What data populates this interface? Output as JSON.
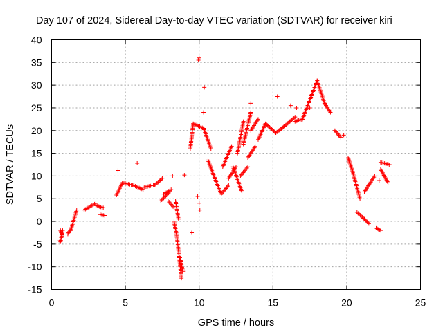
{
  "chart_data": {
    "type": "scatter",
    "title": "Day 107 of 2024, Sidereal Day-to-day VTEC variation (SDTVAR) for receiver kiri",
    "xlabel": "GPS time / hours",
    "ylabel": "SDTVAR / TECUs",
    "xlim": [
      0,
      25
    ],
    "ylim": [
      -15,
      40
    ],
    "x_ticks": [
      0,
      5,
      10,
      15,
      20,
      25
    ],
    "y_ticks": [
      -15,
      -10,
      -5,
      0,
      5,
      10,
      15,
      20,
      25,
      30,
      35,
      40
    ],
    "grid": true,
    "marker": "+",
    "color": "#ff0000",
    "series": [
      {
        "name": "SDTVAR",
        "segments": [
          {
            "x": [
              0.6,
              0.75
            ],
            "y": [
              -4.5,
              -2.0
            ]
          },
          {
            "x": [
              0.6,
              0.7
            ],
            "y": [
              -2.0,
              -3.0
            ]
          },
          {
            "x": [
              1.1,
              1.25
            ],
            "y": [
              -2.8,
              -2.0
            ]
          },
          {
            "x": [
              1.3,
              1.7
            ],
            "y": [
              -2.0,
              2.5
            ]
          },
          {
            "x": [
              2.2,
              3.0
            ],
            "y": [
              2.5,
              4.0
            ]
          },
          {
            "x": [
              3.0,
              3.5
            ],
            "y": [
              3.5,
              3.0
            ]
          },
          {
            "x": [
              3.3,
              3.6
            ],
            "y": [
              1.5,
              1.3
            ]
          },
          {
            "x": [
              4.4,
              4.8
            ],
            "y": [
              5.8,
              8.5
            ]
          },
          {
            "x": [
              4.8,
              5.5
            ],
            "y": [
              8.5,
              8.0
            ]
          },
          {
            "x": [
              5.5,
              6.2
            ],
            "y": [
              8.0,
              7.0
            ]
          },
          {
            "x": [
              6.2,
              7.0
            ],
            "y": [
              7.5,
              8.0
            ]
          },
          {
            "x": [
              7.0,
              7.5
            ],
            "y": [
              8.0,
              9.5
            ]
          },
          {
            "x": [
              7.4,
              8.0
            ],
            "y": [
              4.5,
              6.5
            ]
          },
          {
            "x": [
              7.6,
              8.1
            ],
            "y": [
              6.0,
              7.0
            ]
          },
          {
            "x": [
              7.9,
              8.3
            ],
            "y": [
              4.5,
              3.0
            ]
          },
          {
            "x": [
              8.3,
              8.5
            ],
            "y": [
              0.0,
              -3.5
            ]
          },
          {
            "x": [
              8.5,
              8.8
            ],
            "y": [
              -3.5,
              -12.5
            ]
          },
          {
            "x": [
              8.7,
              8.9
            ],
            "y": [
              -8.0,
              -11.0
            ]
          },
          {
            "x": [
              8.4,
              8.6
            ],
            "y": [
              4.5,
              0.5
            ]
          },
          {
            "x": [
              9.4,
              9.6
            ],
            "y": [
              16.0,
              21.5
            ]
          },
          {
            "x": [
              9.6,
              10.3
            ],
            "y": [
              21.5,
              20.5
            ]
          },
          {
            "x": [
              10.3,
              10.8
            ],
            "y": [
              20.5,
              16.0
            ]
          },
          {
            "x": [
              10.6,
              11.0
            ],
            "y": [
              13.5,
              10.0
            ]
          },
          {
            "x": [
              11.0,
              11.5
            ],
            "y": [
              10.0,
              6.0
            ]
          },
          {
            "x": [
              11.5,
              12.0
            ],
            "y": [
              6.0,
              8.0
            ]
          },
          {
            "x": [
              11.6,
              12.2
            ],
            "y": [
              12.0,
              16.5
            ]
          },
          {
            "x": [
              12.0,
              12.5
            ],
            "y": [
              9.5,
              12.0
            ]
          },
          {
            "x": [
              12.3,
              12.9
            ],
            "y": [
              12.0,
              6.5
            ]
          },
          {
            "x": [
              12.6,
              13.0
            ],
            "y": [
              15.0,
              22.0
            ]
          },
          {
            "x": [
              12.8,
              13.3
            ],
            "y": [
              10.0,
              12.0
            ]
          },
          {
            "x": [
              13.0,
              13.5
            ],
            "y": [
              17.0,
              24.0
            ]
          },
          {
            "x": [
              13.3,
              13.8
            ],
            "y": [
              14.0,
              16.5
            ]
          },
          {
            "x": [
              13.5,
              14.0
            ],
            "y": [
              20.0,
              22.5
            ]
          },
          {
            "x": [
              14.0,
              14.5
            ],
            "y": [
              18.0,
              21.5
            ]
          },
          {
            "x": [
              14.5,
              15.2
            ],
            "y": [
              21.5,
              19.5
            ]
          },
          {
            "x": [
              15.2,
              15.8
            ],
            "y": [
              19.5,
              21.0
            ]
          },
          {
            "x": [
              15.8,
              16.5
            ],
            "y": [
              21.0,
              23.0
            ]
          },
          {
            "x": [
              16.5,
              17.0
            ],
            "y": [
              22.0,
              22.5
            ]
          },
          {
            "x": [
              17.0,
              18.0
            ],
            "y": [
              22.5,
              31.0
            ]
          },
          {
            "x": [
              18.0,
              18.5
            ],
            "y": [
              31.0,
              26.0
            ]
          },
          {
            "x": [
              18.5,
              18.9
            ],
            "y": [
              26.0,
              24.0
            ]
          },
          {
            "x": [
              19.2,
              19.6
            ],
            "y": [
              20.0,
              18.5
            ]
          },
          {
            "x": [
              20.1,
              20.4
            ],
            "y": [
              14.0,
              11.0
            ]
          },
          {
            "x": [
              20.4,
              20.9
            ],
            "y": [
              11.0,
              5.0
            ]
          },
          {
            "x": [
              20.7,
              21.2
            ],
            "y": [
              2.0,
              0.5
            ]
          },
          {
            "x": [
              21.2,
              21.5
            ],
            "y": [
              0.5,
              -0.5
            ]
          },
          {
            "x": [
              21.2,
              21.9
            ],
            "y": [
              6.5,
              10.0
            ]
          },
          {
            "x": [
              22.0,
              22.3
            ],
            "y": [
              -1.5,
              -2.0
            ]
          },
          {
            "x": [
              22.3,
              22.8
            ],
            "y": [
              11.5,
              8.5
            ]
          },
          {
            "x": [
              22.3,
              22.9
            ],
            "y": [
              13.0,
              12.5
            ]
          }
        ],
        "isolated_points": [
          {
            "x": 0.55,
            "y": -4.3
          },
          {
            "x": 4.5,
            "y": 11.2
          },
          {
            "x": 5.8,
            "y": 12.8
          },
          {
            "x": 8.2,
            "y": 10.0
          },
          {
            "x": 9.0,
            "y": 10.2
          },
          {
            "x": 9.5,
            "y": -2.5
          },
          {
            "x": 9.9,
            "y": 5.5
          },
          {
            "x": 9.95,
            "y": 35.5
          },
          {
            "x": 10.0,
            "y": 36.0
          },
          {
            "x": 10.35,
            "y": 29.5
          },
          {
            "x": 10.3,
            "y": 24.0
          },
          {
            "x": 10.0,
            "y": 4.0
          },
          {
            "x": 10.05,
            "y": 2.5
          },
          {
            "x": 12.2,
            "y": 16.5
          },
          {
            "x": 13.5,
            "y": 26.0
          },
          {
            "x": 15.3,
            "y": 27.5
          },
          {
            "x": 16.2,
            "y": 25.5
          },
          {
            "x": 16.6,
            "y": 25.0
          },
          {
            "x": 17.5,
            "y": 25.0
          },
          {
            "x": 19.8,
            "y": 19.0
          },
          {
            "x": 22.2,
            "y": 9.0
          }
        ]
      }
    ]
  }
}
